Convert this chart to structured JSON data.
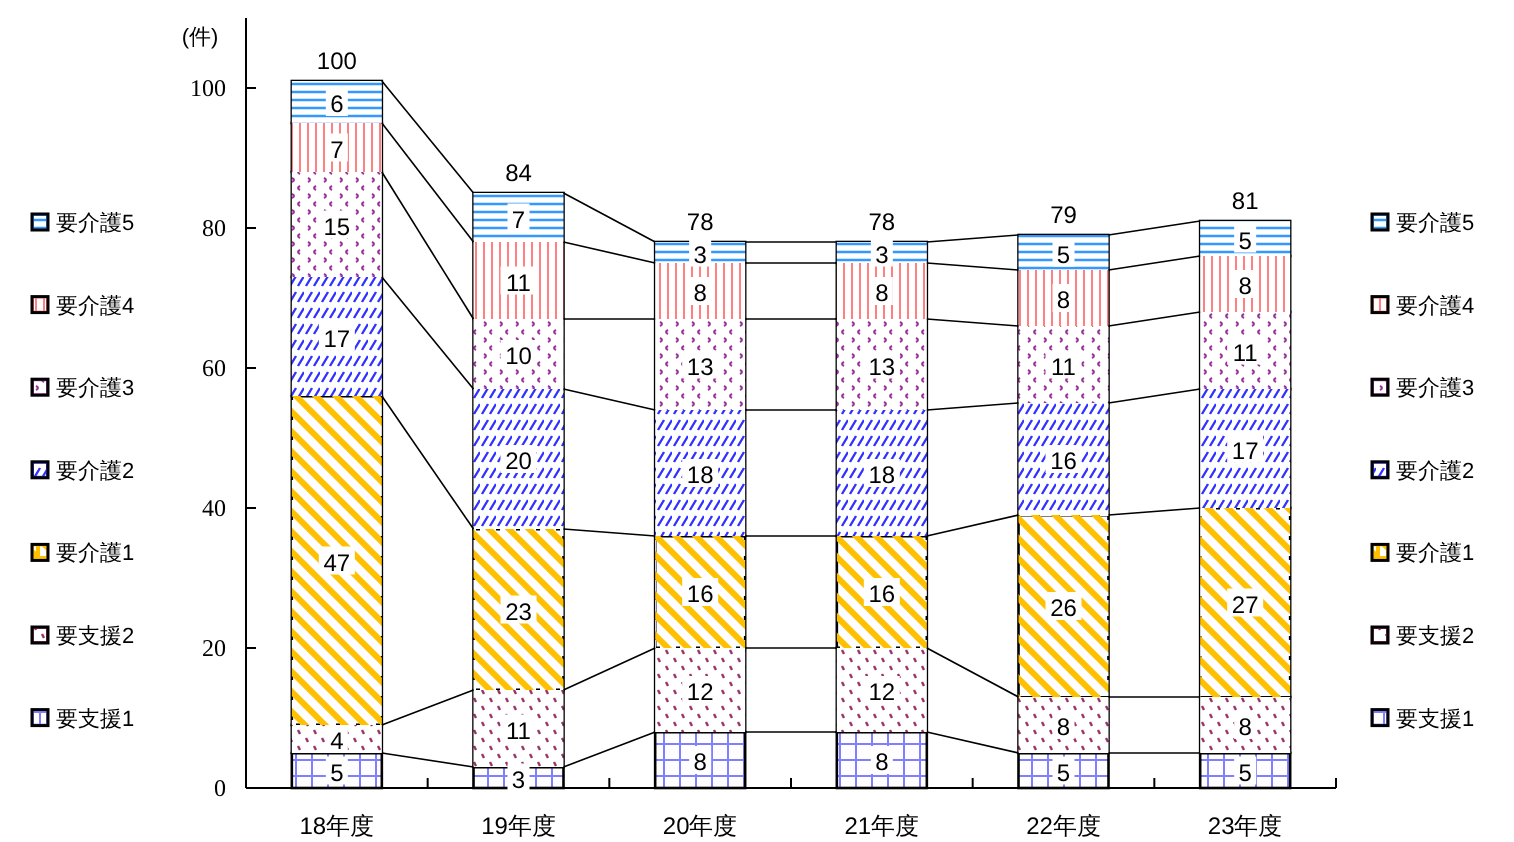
{
  "chart_data": {
    "type": "bar",
    "stacked": true,
    "ylabel": "(件)",
    "categories": [
      "18年度",
      "19年度",
      "20年度",
      "21年度",
      "22年度",
      "23年度"
    ],
    "series": [
      {
        "name": "要支援1",
        "color": "#8080ff",
        "values": [
          5,
          3,
          8,
          8,
          5,
          5
        ]
      },
      {
        "name": "要支援2",
        "color": "#993366",
        "values": [
          4,
          11,
          12,
          12,
          8,
          8
        ]
      },
      {
        "name": "要介護1",
        "color": "#ffc000",
        "values": [
          47,
          23,
          16,
          16,
          26,
          27
        ]
      },
      {
        "name": "要介護2",
        "color": "#3333ff",
        "values": [
          17,
          20,
          18,
          18,
          16,
          17
        ]
      },
      {
        "name": "要介護3",
        "color": "#993399",
        "values": [
          15,
          10,
          13,
          13,
          11,
          11
        ]
      },
      {
        "name": "要介護4",
        "color": "#ff8080",
        "values": [
          7,
          11,
          8,
          8,
          8,
          8
        ]
      },
      {
        "name": "要介護5",
        "color": "#3399ff",
        "values": [
          6,
          7,
          3,
          3,
          5,
          5
        ]
      }
    ],
    "totals": [
      "100",
      "84",
      "78",
      "78",
      "79",
      "81"
    ],
    "data_labels": true,
    "legend": "right",
    "ylim": [
      0,
      110
    ],
    "yticks": [
      0,
      20,
      40,
      60,
      80,
      100
    ],
    "grid": false
  }
}
